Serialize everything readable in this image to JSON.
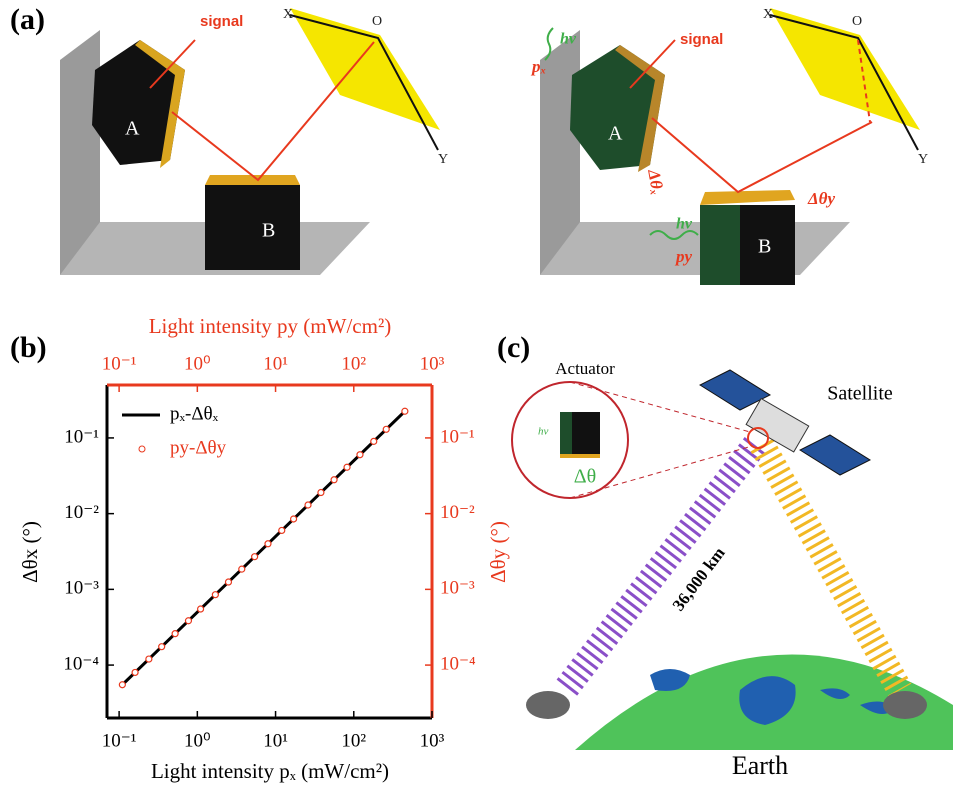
{
  "panel_a": {
    "label": "(a)",
    "left": {
      "signal": "signal",
      "x": "X",
      "o": "O",
      "y": "Y",
      "a": "A",
      "b": "B"
    },
    "right": {
      "signal": "signal",
      "x": "X",
      "o": "O",
      "y": "Y",
      "a": "A",
      "b": "B",
      "hv_x": "hν",
      "p_x": "pₓ",
      "dtheta_x": "Δθₓ",
      "hv_y": "hν",
      "p_y": "py",
      "dtheta_y": "Δθy"
    }
  },
  "panel_b": {
    "label": "(b)"
  },
  "chart_data": {
    "type": "line",
    "xlabel": "Light intensity pₓ (mW/cm²)",
    "x2label": "Light intensity py (mW/cm²)",
    "ylabel": "Δθx (°)",
    "y2label": "Δθy (°)",
    "xscale": "log",
    "yscale": "log",
    "xlim": [
      0.07,
      1000
    ],
    "x2lim": [
      0.07,
      1000
    ],
    "ylim": [
      2e-05,
      0.5
    ],
    "y2lim": [
      2e-05,
      0.5
    ],
    "xticks": [
      {
        "value": 0.1,
        "label": "10⁻¹"
      },
      {
        "value": 1,
        "label": "10⁰"
      },
      {
        "value": 10,
        "label": "10¹"
      },
      {
        "value": 100,
        "label": "10²"
      },
      {
        "value": 1000,
        "label": "10³"
      }
    ],
    "x2ticks": [
      {
        "value": 0.1,
        "label": "10⁻¹"
      },
      {
        "value": 1,
        "label": "10⁰"
      },
      {
        "value": 10,
        "label": "10¹"
      },
      {
        "value": 100,
        "label": "10²"
      },
      {
        "value": 1000,
        "label": "10³"
      }
    ],
    "yticks": [
      {
        "value": 0.0001,
        "label": "10⁻⁴"
      },
      {
        "value": 0.001,
        "label": "10⁻³"
      },
      {
        "value": 0.01,
        "label": "10⁻²"
      },
      {
        "value": 0.1,
        "label": "10⁻¹"
      }
    ],
    "y2ticks": [
      {
        "value": 0.0001,
        "label": "10⁻⁴"
      },
      {
        "value": 0.001,
        "label": "10⁻³"
      },
      {
        "value": 0.01,
        "label": "10⁻²"
      },
      {
        "value": 0.1,
        "label": "10⁻¹"
      }
    ],
    "x2color": "#e8391e",
    "legend": "upper left",
    "series": [
      {
        "name": "pₓ-Δθₓ",
        "color": "#000000",
        "x": [
          0.11,
          450
        ],
        "values": [
          5.5e-05,
          0.225
        ]
      },
      {
        "name": "py-Δθy",
        "color": "#e8391e",
        "marker": "o",
        "axis": "y2",
        "x": [
          0.11,
          0.16,
          0.24,
          0.35,
          0.52,
          0.77,
          1.1,
          1.7,
          2.5,
          3.7,
          5.4,
          8,
          12,
          17,
          26,
          38,
          56,
          82,
          120,
          180,
          260,
          450
        ],
        "values": [
          5.5e-05,
          8e-05,
          0.00012,
          0.000175,
          0.00026,
          0.000385,
          0.00055,
          0.00085,
          0.00125,
          0.00185,
          0.0027,
          0.004,
          0.006,
          0.0085,
          0.013,
          0.019,
          0.028,
          0.041,
          0.06,
          0.09,
          0.13,
          0.225
        ]
      }
    ]
  },
  "panel_c": {
    "label": "(c)",
    "actuator": "Actuator",
    "satellite": "Satellite",
    "hv": "hν",
    "dtheta": "Δθ",
    "distance": "36,000 km",
    "earth": "Earth"
  }
}
